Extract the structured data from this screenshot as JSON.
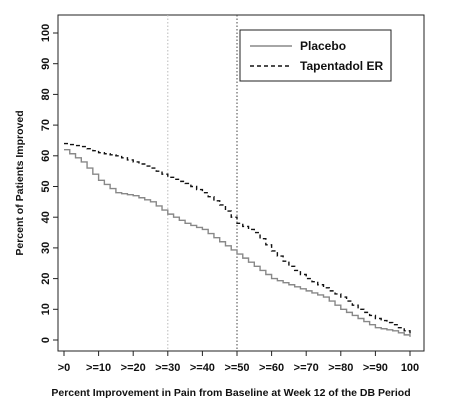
{
  "chart_data": {
    "type": "line",
    "title": "",
    "xlabel": "Percent Improvement in Pain from Baseline at Week 12 of the DB Period",
    "ylabel": "Percent of Patients Improved",
    "xlim": [
      0,
      100
    ],
    "ylim": [
      0,
      100
    ],
    "x_ticks": [
      0,
      10,
      20,
      30,
      40,
      50,
      60,
      70,
      80,
      90,
      100
    ],
    "x_tick_labels": [
      ">0",
      ">=10",
      ">=20",
      ">=30",
      ">=40",
      ">=50",
      ">=60",
      ">=70",
      ">=80",
      ">=90",
      "100"
    ],
    "y_ticks": [
      0,
      10,
      20,
      30,
      40,
      50,
      60,
      70,
      80,
      90,
      100
    ],
    "y_tick_labels": [
      "0",
      "10",
      "20",
      "30",
      "40",
      "50",
      "60",
      "70",
      "80",
      "90",
      "100"
    ],
    "reference_lines": [
      {
        "x": 30,
        "style": "dotted",
        "color": "#bbbbbb"
      },
      {
        "x": 50,
        "style": "dotted",
        "color": "#444444"
      }
    ],
    "legend_position": "top-right",
    "grid": false,
    "series": [
      {
        "name": "Placebo",
        "style": "solid",
        "color": "#888888",
        "x": [
          0,
          5,
          10,
          15,
          20,
          25,
          30,
          35,
          40,
          45,
          50,
          55,
          60,
          65,
          70,
          75,
          80,
          85,
          90,
          95,
          100
        ],
        "y": [
          62,
          58,
          52,
          48,
          47,
          45,
          41,
          38,
          36,
          32,
          28,
          24,
          20,
          18,
          16,
          14,
          10,
          7,
          4,
          3,
          1
        ]
      },
      {
        "name": "Tapentadol ER",
        "style": "dashed",
        "color": "#111111",
        "x": [
          0,
          5,
          10,
          15,
          20,
          25,
          30,
          35,
          40,
          45,
          50,
          55,
          60,
          65,
          70,
          75,
          80,
          85,
          90,
          95,
          100
        ],
        "y": [
          64,
          63,
          61,
          60,
          58,
          56,
          53,
          51,
          48,
          44,
          38,
          35,
          29,
          24,
          20,
          17,
          14,
          10,
          7,
          5,
          2
        ]
      }
    ]
  }
}
